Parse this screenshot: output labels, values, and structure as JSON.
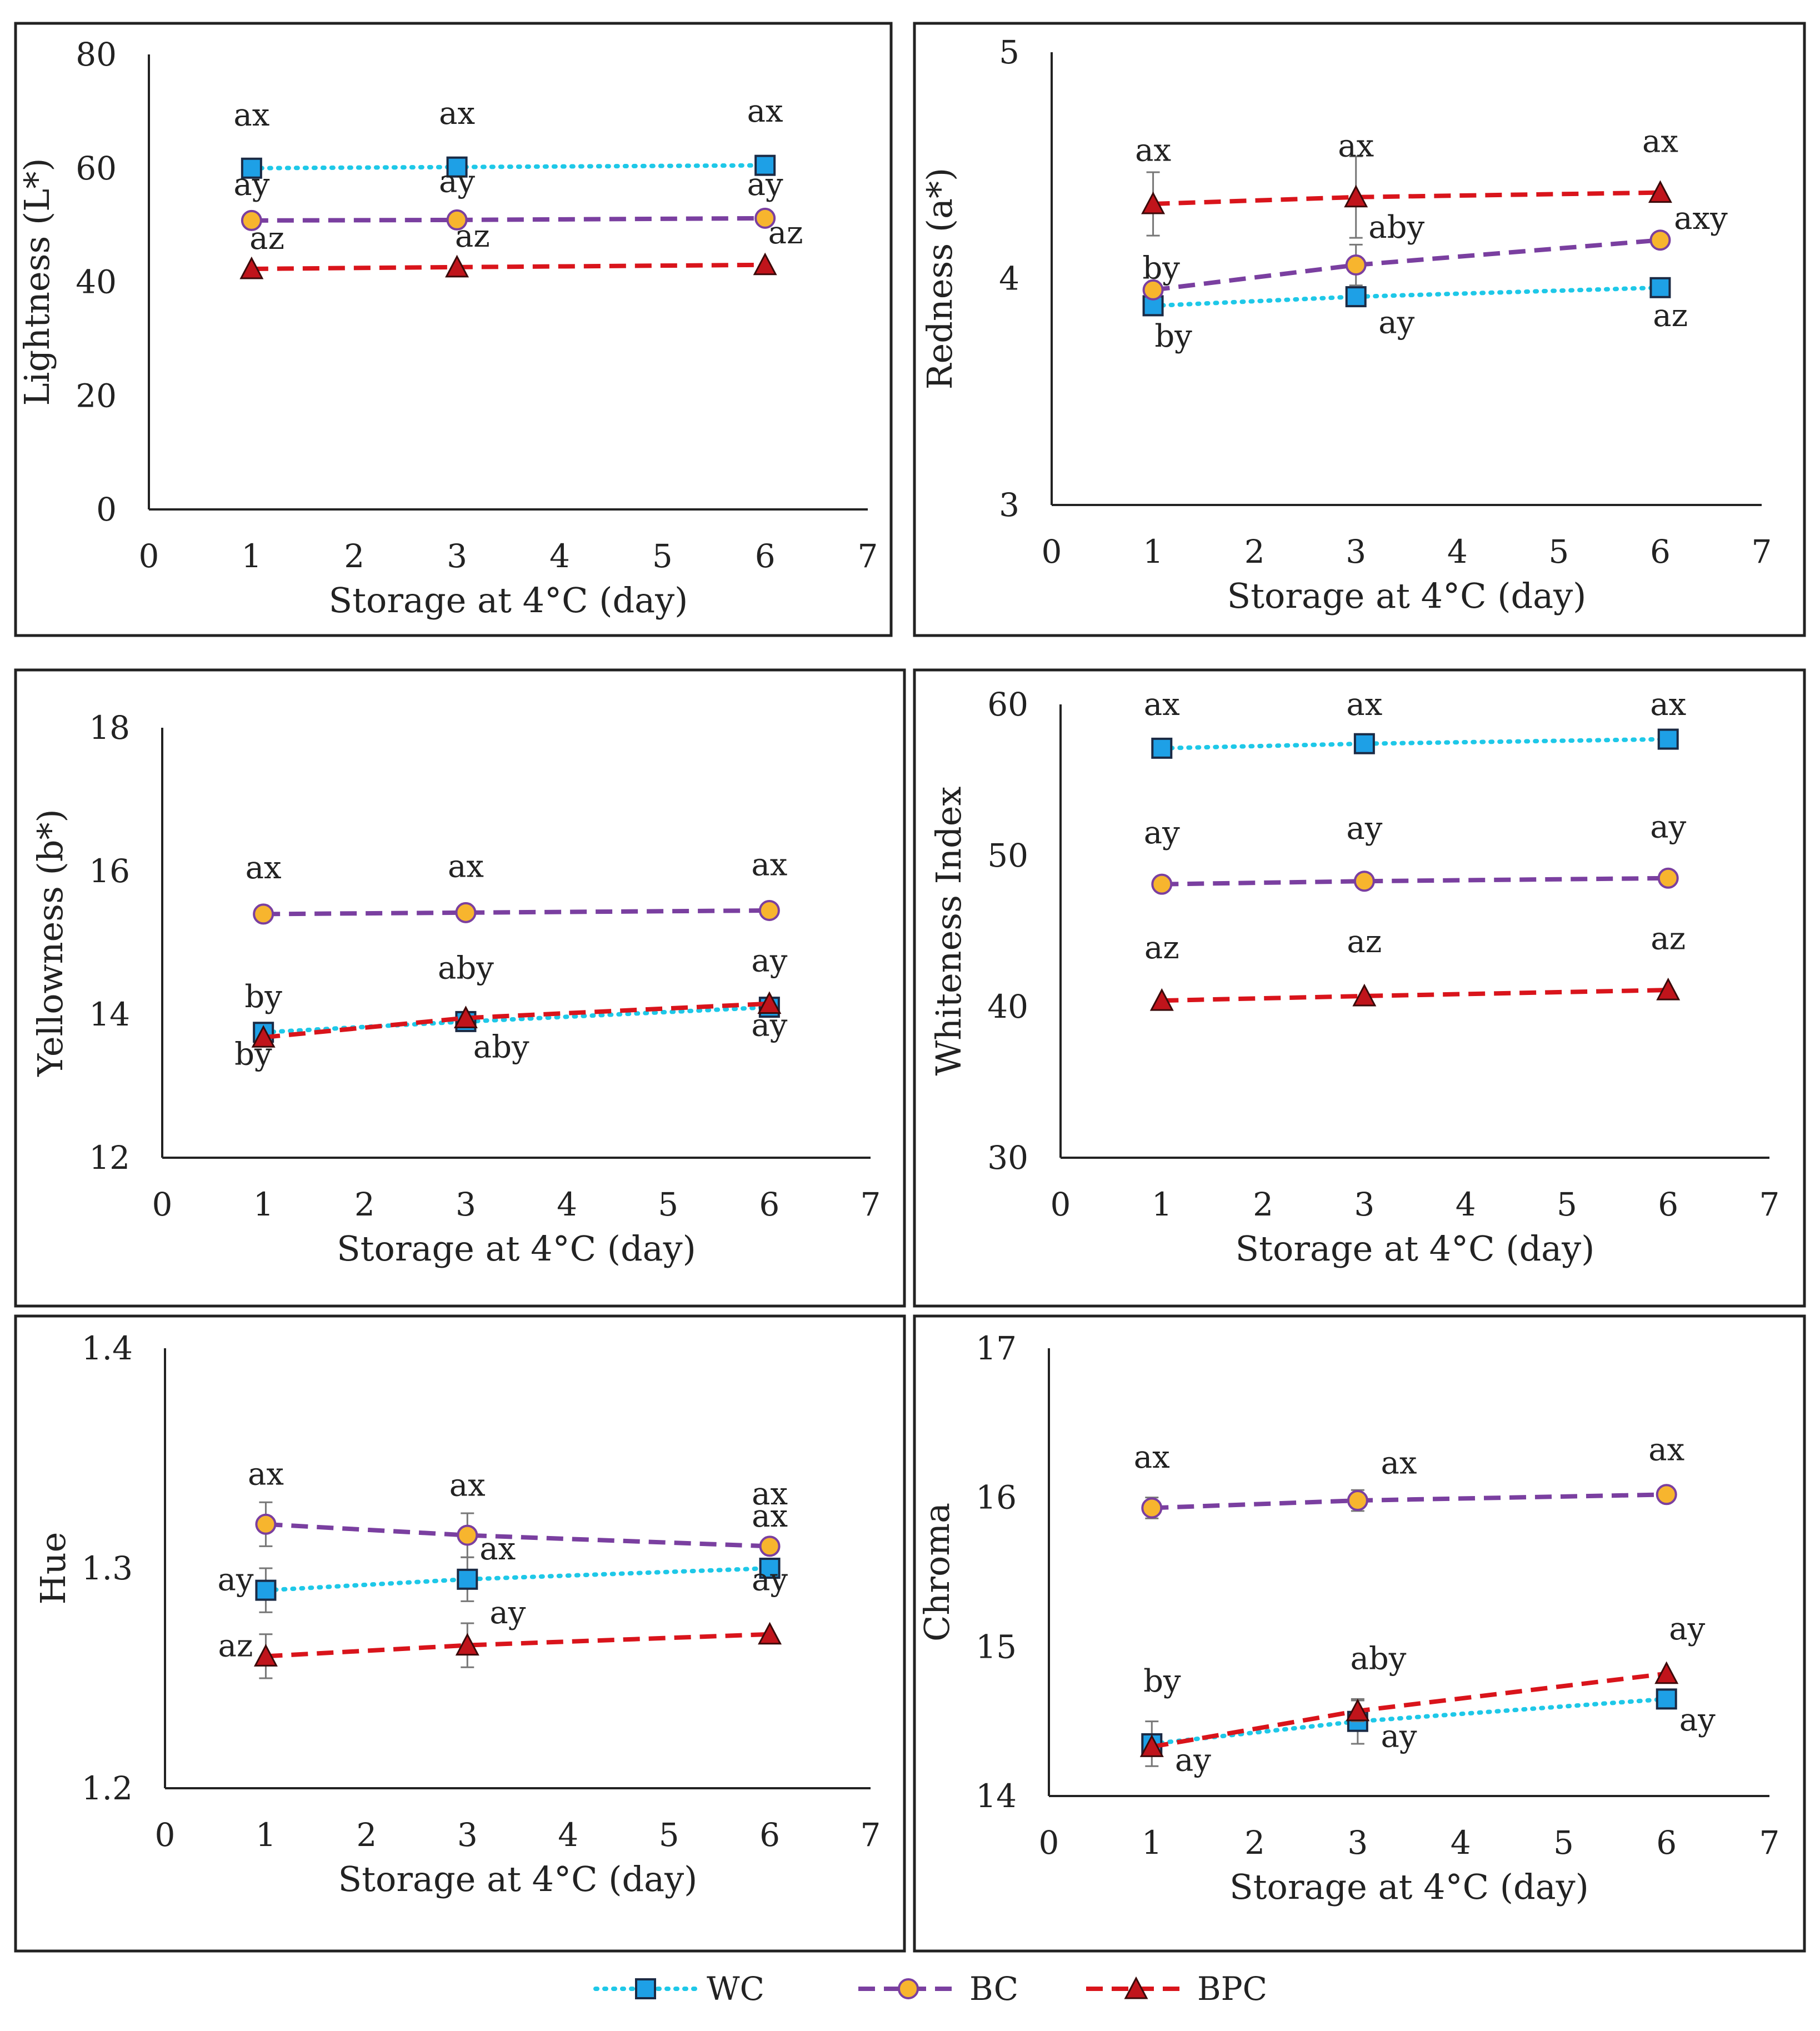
{
  "legend": [
    {
      "name": "WC",
      "color": "#1ec8e8",
      "fill": "#1ea0e6",
      "marker": "square",
      "dash": "dotted"
    },
    {
      "name": "BC",
      "color": "#7a3fa0",
      "fill": "#f7b52e",
      "marker": "circle",
      "dash": "dashed"
    },
    {
      "name": "BPC",
      "color": "#d9141b",
      "fill": "#c0141b",
      "marker": "triangle",
      "dash": "dashed"
    }
  ],
  "chart_data": [
    {
      "type": "line",
      "xlabel": "Storage at 4°C (day)",
      "ylabel": "Lightness (L*)",
      "x": [
        1,
        3,
        6
      ],
      "xlim": [
        0,
        7
      ],
      "xticks": [
        0,
        1,
        2,
        3,
        4,
        5,
        6,
        7
      ],
      "ylim": [
        0,
        80
      ],
      "yticks": [
        0,
        20,
        40,
        60,
        80
      ],
      "series": [
        {
          "name": "WC",
          "values": [
            60,
            60.2,
            60.5
          ],
          "errors": [
            0,
            0,
            0
          ]
        },
        {
          "name": "BC",
          "values": [
            50.8,
            50.9,
            51.2
          ],
          "errors": [
            0,
            0,
            0
          ]
        },
        {
          "name": "BPC",
          "values": [
            42.3,
            42.6,
            43
          ],
          "errors": [
            0,
            0,
            0
          ]
        }
      ],
      "annotations": [
        {
          "text": "ax",
          "x": 1,
          "y": 67.5
        },
        {
          "text": "ax",
          "x": 3,
          "y": 67.8
        },
        {
          "text": "ax",
          "x": 6,
          "y": 68.2
        },
        {
          "text": "ay",
          "x": 1,
          "y": 55.3
        },
        {
          "text": "ay",
          "x": 3,
          "y": 55.8
        },
        {
          "text": "ay",
          "x": 6,
          "y": 55.3
        },
        {
          "text": "az",
          "x": 1.15,
          "y": 45.8
        },
        {
          "text": "az",
          "x": 3.15,
          "y": 46.2
        },
        {
          "text": "az",
          "x": 6.2,
          "y": 46.8
        }
      ]
    },
    {
      "type": "line",
      "xlabel": "Storage at 4°C (day)",
      "ylabel": "Redness (a*)",
      "x": [
        1,
        3,
        6
      ],
      "xlim": [
        0,
        7
      ],
      "xticks": [
        0,
        1,
        2,
        3,
        4,
        5,
        6,
        7
      ],
      "ylim": [
        3,
        5
      ],
      "yticks": [
        3,
        4,
        5
      ],
      "series": [
        {
          "name": "WC",
          "values": [
            3.88,
            3.92,
            3.96
          ],
          "errors": [
            0,
            0,
            0
          ]
        },
        {
          "name": "BC",
          "values": [
            3.95,
            4.06,
            4.17
          ],
          "errors": [
            0.02,
            0.09,
            0
          ]
        },
        {
          "name": "BPC",
          "values": [
            4.33,
            4.36,
            4.38
          ],
          "errors": [
            0.14,
            0.18,
            0
          ]
        }
      ],
      "annotations": [
        {
          "text": "ax",
          "x": 1,
          "y": 4.52
        },
        {
          "text": "ax",
          "x": 3,
          "y": 4.54
        },
        {
          "text": "ax",
          "x": 6,
          "y": 4.56
        },
        {
          "text": "by",
          "x": 1.08,
          "y": 4.0
        },
        {
          "text": "aby",
          "x": 3.4,
          "y": 4.18
        },
        {
          "text": "axy",
          "x": 6.4,
          "y": 4.22
        },
        {
          "text": "by",
          "x": 1.2,
          "y": 3.7
        },
        {
          "text": "ay",
          "x": 3.4,
          "y": 3.76
        },
        {
          "text": "az",
          "x": 6.1,
          "y": 3.79
        }
      ]
    },
    {
      "type": "line",
      "xlabel": "Storage at 4°C (day)",
      "ylabel": "Yellowness (b*)",
      "x": [
        1,
        3,
        6
      ],
      "xlim": [
        0,
        7
      ],
      "xticks": [
        0,
        1,
        2,
        3,
        4,
        5,
        6,
        7
      ],
      "ylim": [
        12,
        18
      ],
      "yticks": [
        12,
        14,
        16,
        18
      ],
      "series": [
        {
          "name": "WC",
          "values": [
            13.75,
            13.9,
            14.1
          ],
          "errors": [
            0,
            0,
            0
          ]
        },
        {
          "name": "BC",
          "values": [
            15.4,
            15.42,
            15.45
          ],
          "errors": [
            0,
            0,
            0
          ]
        },
        {
          "name": "BPC",
          "values": [
            13.68,
            13.95,
            14.15
          ],
          "errors": [
            0,
            0,
            0
          ]
        }
      ],
      "annotations": [
        {
          "text": "ax",
          "x": 1,
          "y": 15.9
        },
        {
          "text": "ax",
          "x": 3,
          "y": 15.92
        },
        {
          "text": "ax",
          "x": 6,
          "y": 15.94
        },
        {
          "text": "by",
          "x": 1,
          "y": 14.1
        },
        {
          "text": "aby",
          "x": 3,
          "y": 14.5
        },
        {
          "text": "ay",
          "x": 6,
          "y": 14.6
        },
        {
          "text": "by",
          "x": 0.9,
          "y": 13.3
        },
        {
          "text": "aby",
          "x": 3.35,
          "y": 13.4
        },
        {
          "text": "ay",
          "x": 6,
          "y": 13.7
        }
      ]
    },
    {
      "type": "line",
      "xlabel": "Storage at 4°C (day)",
      "ylabel": "Whiteness Index",
      "x": [
        1,
        3,
        6
      ],
      "xlim": [
        0,
        7
      ],
      "xticks": [
        0,
        1,
        2,
        3,
        4,
        5,
        6,
        7
      ],
      "ylim": [
        30,
        60
      ],
      "yticks": [
        30,
        40,
        50,
        60
      ],
      "series": [
        {
          "name": "WC",
          "values": [
            57.1,
            57.4,
            57.7
          ],
          "errors": [
            0,
            0,
            0
          ]
        },
        {
          "name": "BC",
          "values": [
            48.1,
            48.3,
            48.5
          ],
          "errors": [
            0,
            0,
            0
          ]
        },
        {
          "name": "BPC",
          "values": [
            40.4,
            40.7,
            41.1
          ],
          "errors": [
            0,
            0,
            0
          ]
        }
      ],
      "annotations": [
        {
          "text": "ax",
          "x": 1,
          "y": 59.3
        },
        {
          "text": "ax",
          "x": 3,
          "y": 59.3
        },
        {
          "text": "ax",
          "x": 6,
          "y": 59.3
        },
        {
          "text": "ay",
          "x": 1,
          "y": 50.8
        },
        {
          "text": "ay",
          "x": 3,
          "y": 51.1
        },
        {
          "text": "ay",
          "x": 6,
          "y": 51.2
        },
        {
          "text": "az",
          "x": 1,
          "y": 43.2
        },
        {
          "text": "az",
          "x": 3,
          "y": 43.6
        },
        {
          "text": "az",
          "x": 6,
          "y": 43.8
        }
      ]
    },
    {
      "type": "line",
      "xlabel": "Storage at 4°C (day)",
      "ylabel": "Hue",
      "x": [
        1,
        3,
        6
      ],
      "xlim": [
        0,
        7
      ],
      "xticks": [
        0,
        1,
        2,
        3,
        4,
        5,
        6,
        7
      ],
      "ylim": [
        1.2,
        1.4
      ],
      "yticks": [
        1.2,
        1.3,
        1.4
      ],
      "series": [
        {
          "name": "WC",
          "values": [
            1.29,
            1.295,
            1.3
          ],
          "errors": [
            0.01,
            0.01,
            0
          ]
        },
        {
          "name": "BC",
          "values": [
            1.32,
            1.315,
            1.31
          ],
          "errors": [
            0.01,
            0.01,
            0
          ]
        },
        {
          "name": "BPC",
          "values": [
            1.26,
            1.265,
            1.27
          ],
          "errors": [
            0.01,
            0.01,
            0
          ]
        }
      ],
      "annotations": [
        {
          "text": "ax",
          "x": 1,
          "y": 1.338
        },
        {
          "text": "ax",
          "x": 3,
          "y": 1.333
        },
        {
          "text": "ax",
          "x": 6,
          "y": 1.329
        },
        {
          "text": "ax",
          "x": 6,
          "y": 1.319
        },
        {
          "text": "ax",
          "x": 3.3,
          "y": 1.304
        },
        {
          "text": "ay",
          "x": 0.7,
          "y": 1.29
        },
        {
          "text": "ay",
          "x": 6,
          "y": 1.29
        },
        {
          "text": "ay",
          "x": 3.4,
          "y": 1.275
        },
        {
          "text": "az",
          "x": 0.7,
          "y": 1.26
        }
      ]
    },
    {
      "type": "line",
      "xlabel": "Storage at 4°C (day)",
      "ylabel": "Chroma",
      "x": [
        1,
        3,
        6
      ],
      "xlim": [
        0,
        7
      ],
      "xticks": [
        0,
        1,
        2,
        3,
        4,
        5,
        6,
        7
      ],
      "ylim": [
        14,
        17
      ],
      "yticks": [
        14,
        15,
        16,
        17
      ],
      "series": [
        {
          "name": "WC",
          "values": [
            14.35,
            14.5,
            14.65
          ],
          "errors": [
            0.15,
            0.15,
            0
          ]
        },
        {
          "name": "BC",
          "values": [
            15.93,
            15.98,
            16.02
          ],
          "errors": [
            0.07,
            0.07,
            0
          ]
        },
        {
          "name": "BPC",
          "values": [
            14.33,
            14.57,
            14.82
          ],
          "errors": [
            0,
            0.07,
            0
          ]
        }
      ],
      "annotations": [
        {
          "text": "ax",
          "x": 1,
          "y": 16.2
        },
        {
          "text": "ax",
          "x": 3.4,
          "y": 16.16
        },
        {
          "text": "ax",
          "x": 6,
          "y": 16.25
        },
        {
          "text": "by",
          "x": 1.1,
          "y": 14.7
        },
        {
          "text": "aby",
          "x": 3.2,
          "y": 14.85
        },
        {
          "text": "ay",
          "x": 6.2,
          "y": 15.05
        },
        {
          "text": "ay",
          "x": 1.4,
          "y": 14.17
        },
        {
          "text": "ay",
          "x": 3.4,
          "y": 14.33
        },
        {
          "text": "ay",
          "x": 6.3,
          "y": 14.44
        }
      ]
    }
  ]
}
